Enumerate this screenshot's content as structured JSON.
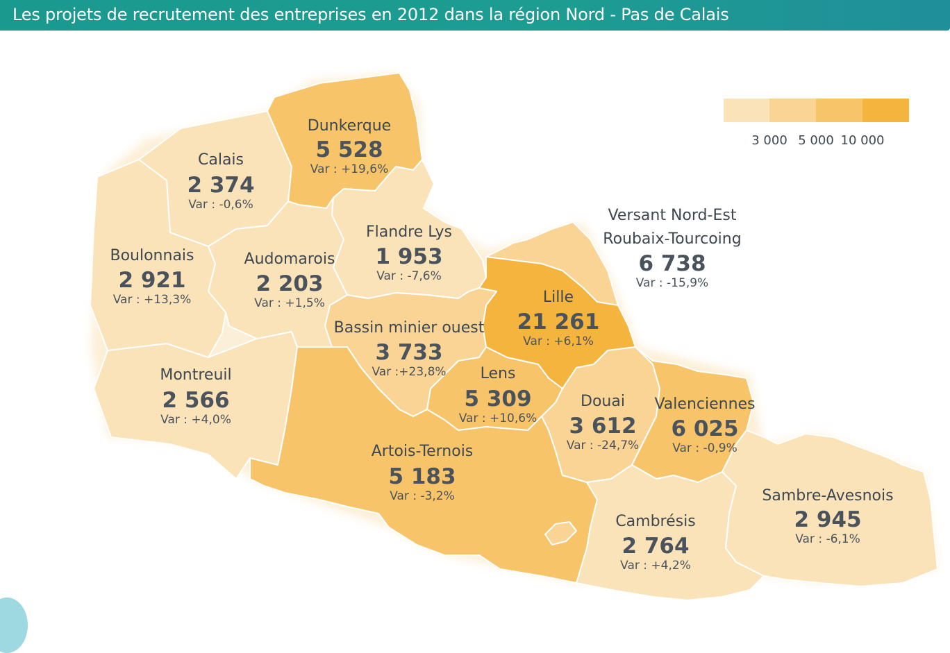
{
  "title": "Les projets de recrutement des entreprises en 2012 dans la région Nord - Pas de Calais",
  "colors": {
    "title_bg": "#1d9c92",
    "class1": "#fbe3b9",
    "class2": "#fad494",
    "class3": "#f7c46a",
    "class4": "#f5b43e",
    "label_text": "#4a535c"
  },
  "legend": {
    "ticks": [
      "3 000",
      "5 000",
      "10 000"
    ]
  },
  "regions": [
    {
      "key": "dunkerque",
      "name": "Dunkerque",
      "value": "5 528",
      "var": "Var : +19,6%"
    },
    {
      "key": "calais",
      "name": "Calais",
      "value": "2 374",
      "var": "Var : -0,6%"
    },
    {
      "key": "flandre",
      "name": "Flandre Lys",
      "value": "1 953",
      "var": "Var : -7,6%"
    },
    {
      "key": "versant",
      "name": "Versant Nord-Est",
      "name2": "Roubaix-Tourcoing",
      "value": "6 738",
      "var": "Var : -15,9%"
    },
    {
      "key": "boulonnais",
      "name": "Boulonnais",
      "value": "2 921",
      "var": "Var : +13,3%"
    },
    {
      "key": "audomarois",
      "name": "Audomarois",
      "value": "2 203",
      "var": "Var : +1,5%"
    },
    {
      "key": "lille",
      "name": "Lille",
      "value": "21 261",
      "var": "Var : +6,1%"
    },
    {
      "key": "bassin",
      "name": "Bassin minier ouest",
      "value": "3 733",
      "var": "Var :+23,8%"
    },
    {
      "key": "montreuil",
      "name": "Montreuil",
      "value": "2 566",
      "var": "Var : +4,0%"
    },
    {
      "key": "lens",
      "name": "Lens",
      "value": "5 309",
      "var": "Var : +10,6%"
    },
    {
      "key": "douai",
      "name": "Douai",
      "value": "3 612",
      "var": "Var : -24,7%"
    },
    {
      "key": "valenciennes",
      "name": "Valenciennes",
      "value": "6 025",
      "var": "Var : -0,9%"
    },
    {
      "key": "artois",
      "name": "Artois-Ternois",
      "value": "5 183",
      "var": "Var : -3,2%"
    },
    {
      "key": "sambre",
      "name": "Sambre-Avesnois",
      "value": "2 945",
      "var": "Var : -6,1%"
    },
    {
      "key": "cambresis",
      "name": "Cambrésis",
      "value": "2 764",
      "var": "Var : +4,2%"
    }
  ]
}
